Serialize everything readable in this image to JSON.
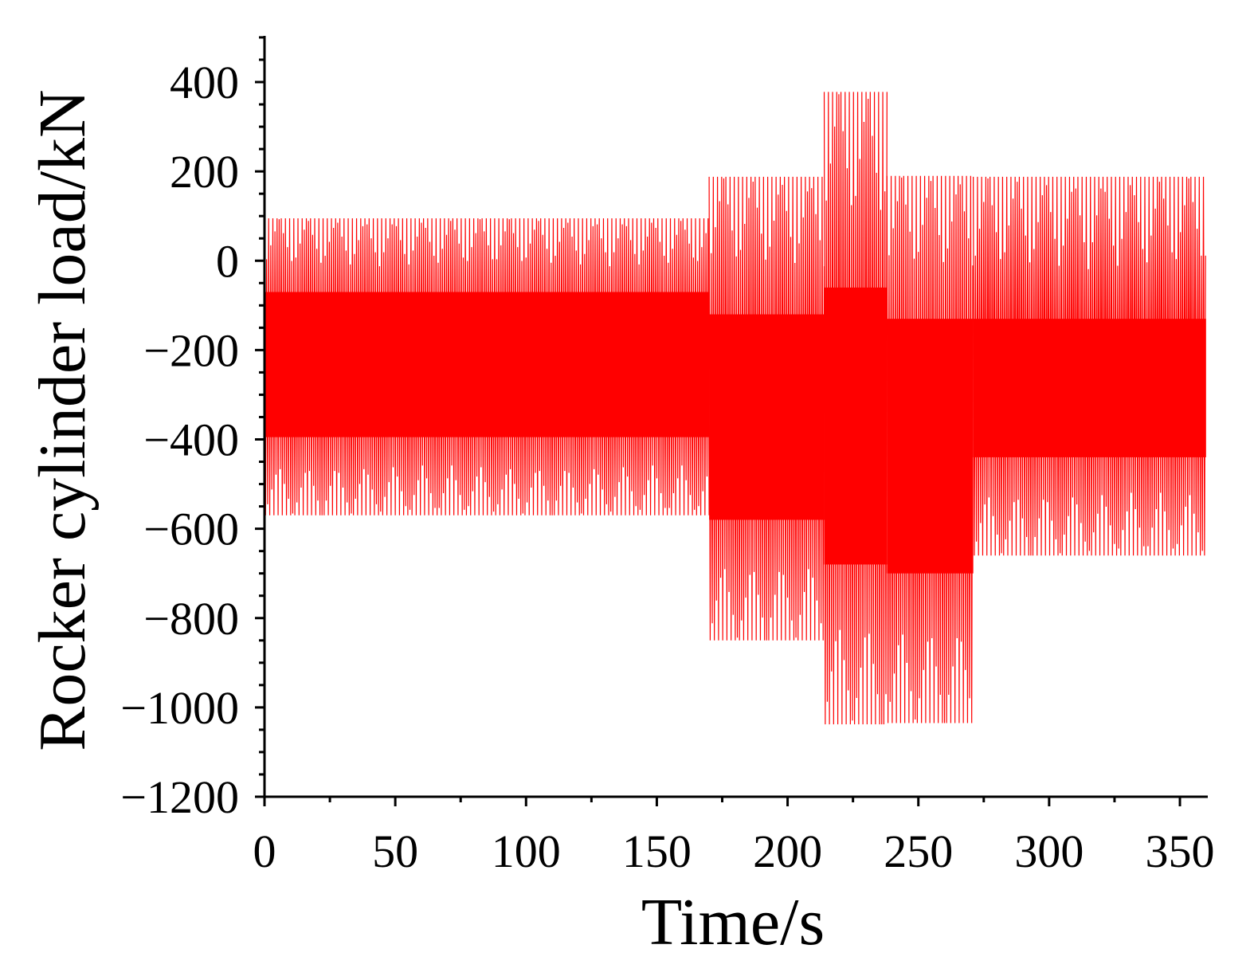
{
  "chart_data": {
    "type": "line",
    "title": "",
    "xlabel": "Time/s",
    "ylabel": "Rocker cylinder load/kN",
    "xlim": [
      0,
      360
    ],
    "ylim": [
      -1200,
      500
    ],
    "x_ticks": [
      0,
      50,
      100,
      150,
      200,
      250,
      300,
      350
    ],
    "x_tick_labels": [
      "0",
      "50",
      "100",
      "150",
      "200",
      "250",
      "300",
      "350"
    ],
    "y_ticks": [
      -1200,
      -1000,
      -800,
      -600,
      -400,
      -200,
      0,
      200,
      400
    ],
    "y_tick_labels": [
      "−1200",
      "−1000",
      "−800",
      "−600",
      "−400",
      "−200",
      "0",
      "200",
      "400"
    ],
    "grid": false,
    "legend": null,
    "series_color": "#ff0000",
    "series": [
      {
        "oscillation_period_s": 0.8,
        "envelope_period_s": 11,
        "segments": [
          {
            "x_start": 0,
            "x_end": 170,
            "max": 95,
            "min": -570,
            "max_mod_low": -70,
            "min_mod_high": -395
          },
          {
            "x_start": 170,
            "x_end": 214,
            "max": 188,
            "min": -850,
            "max_mod_low": -120,
            "min_mod_high": -580
          },
          {
            "x_start": 214,
            "x_end": 238,
            "max": 378,
            "min": -1038,
            "max_mod_low": -60,
            "min_mod_high": -680
          },
          {
            "x_start": 238,
            "x_end": 271,
            "max": 190,
            "min": -1035,
            "max_mod_low": -130,
            "min_mod_high": -700
          },
          {
            "x_start": 271,
            "x_end": 360,
            "max": 188,
            "min": -660,
            "max_mod_low": -130,
            "min_mod_high": -440
          }
        ]
      }
    ]
  }
}
